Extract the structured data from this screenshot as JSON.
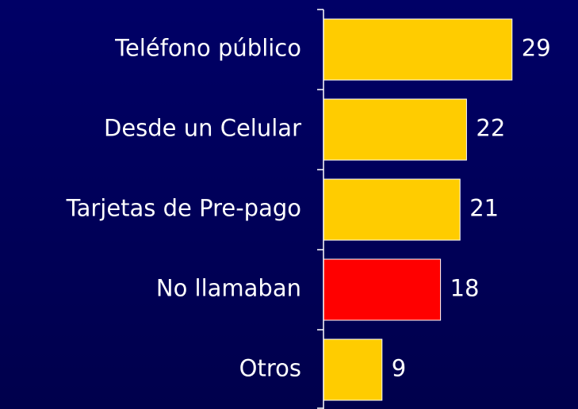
{
  "chart_data": {
    "type": "bar",
    "orientation": "horizontal",
    "categories": [
      "Teléfono público",
      "Desde un Celular",
      "Tarjetas de Pre-pago",
      "No llamaban",
      "Otros"
    ],
    "values": [
      29,
      22,
      21,
      18,
      9
    ],
    "colors": [
      "#ffcc00",
      "#ffcc00",
      "#ffcc00",
      "#ff0000",
      "#ffcc00"
    ]
  }
}
